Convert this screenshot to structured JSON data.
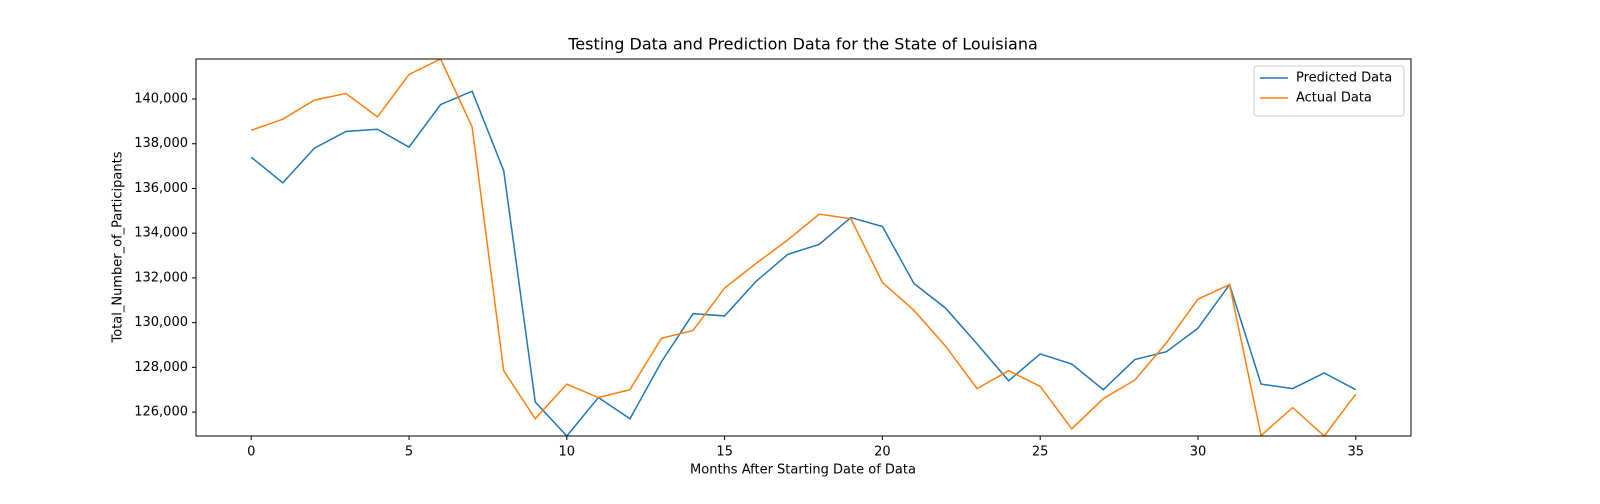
{
  "chart_data": {
    "type": "line",
    "title": "Testing Data and Prediction Data for the State of Louisiana",
    "x_label": "Months After Starting Date of Data",
    "y_label": "Total_Number_of_Participants",
    "x": [
      0,
      1,
      2,
      3,
      4,
      5,
      6,
      7,
      8,
      9,
      10,
      11,
      12,
      13,
      14,
      15,
      16,
      17,
      18,
      19,
      20,
      21,
      22,
      23,
      24,
      25,
      26,
      27,
      28,
      29,
      30,
      31,
      32,
      33,
      34,
      35
    ],
    "series": [
      {
        "name": "Predicted Data",
        "color": "#1f77b4",
        "values": [
          137400,
          136250,
          137800,
          138550,
          138650,
          137850,
          139750,
          140350,
          136800,
          126450,
          124930,
          126650,
          125700,
          128250,
          130400,
          130300,
          131850,
          133050,
          133500,
          134700,
          134300,
          131750,
          130650,
          129050,
          127400,
          128600,
          128150,
          127000,
          128350,
          128700,
          129750,
          131700,
          127250,
          127050,
          127750,
          127000
        ]
      },
      {
        "name": "Actual Data",
        "color": "#ff7f0e",
        "values": [
          138600,
          139100,
          139950,
          140250,
          139200,
          141100,
          141790,
          138750,
          127850,
          125700,
          127250,
          126650,
          127000,
          129300,
          129650,
          131550,
          132650,
          133700,
          134850,
          134650,
          131800,
          130550,
          128950,
          127050,
          127850,
          127150,
          125250,
          126600,
          127430,
          129100,
          131050,
          131700,
          124950,
          126200,
          124930,
          126800
        ]
      }
    ],
    "xlim": [
      -1.75,
      36.75
    ],
    "xticks": [
      0,
      5,
      10,
      15,
      20,
      25,
      30,
      35
    ],
    "ylim": [
      124930,
      141790
    ],
    "yticks": [
      {
        "value": 126000,
        "label": "126,000"
      },
      {
        "value": 128000,
        "label": "128,000"
      },
      {
        "value": 130000,
        "label": "130,000"
      },
      {
        "value": 132000,
        "label": "132,000"
      },
      {
        "value": 134000,
        "label": "134,000"
      },
      {
        "value": 136000,
        "label": "136,000"
      },
      {
        "value": 138000,
        "label": "138,000"
      },
      {
        "value": 140000,
        "label": "140,000"
      }
    ],
    "legend": "upper right",
    "grid": false
  }
}
